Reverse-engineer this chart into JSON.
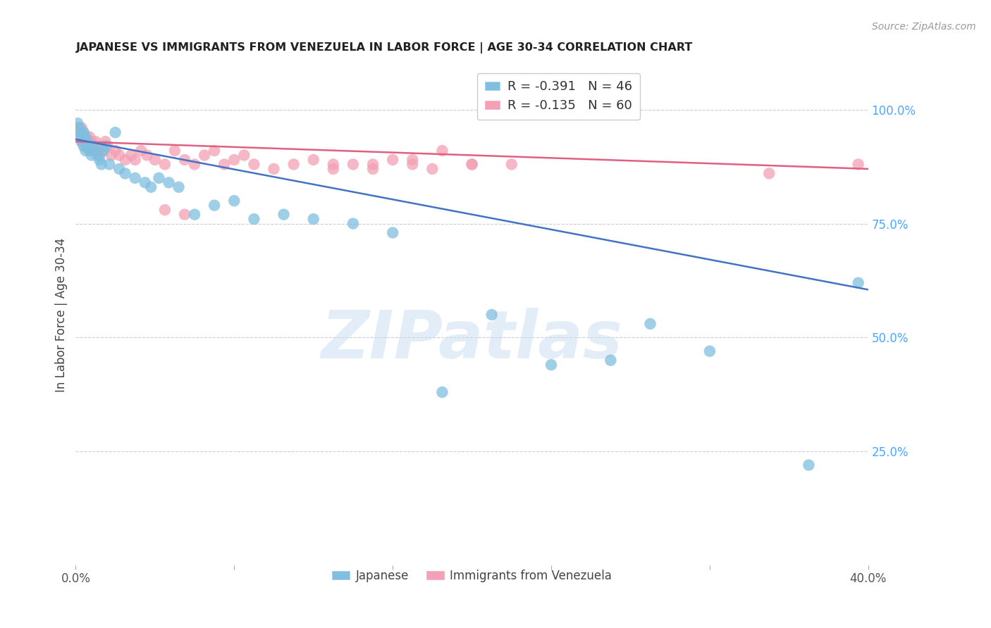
{
  "title": "JAPANESE VS IMMIGRANTS FROM VENEZUELA IN LABOR FORCE | AGE 30-34 CORRELATION CHART",
  "source": "Source: ZipAtlas.com",
  "ylabel": "In Labor Force | Age 30-34",
  "xlim": [
    0.0,
    0.4
  ],
  "ylim": [
    0.0,
    1.1
  ],
  "xticks": [
    0.0,
    0.08,
    0.16,
    0.24,
    0.32,
    0.4
  ],
  "xticklabels": [
    "0.0%",
    "",
    "",
    "",
    "",
    "40.0%"
  ],
  "yticks_right": [
    0.25,
    0.5,
    0.75,
    1.0
  ],
  "ytick_labels_right": [
    "25.0%",
    "50.0%",
    "75.0%",
    "100.0%"
  ],
  "watermark": "ZIPatlas",
  "blue_color": "#7fbfdf",
  "pink_color": "#f4a0b5",
  "blue_line_color": "#4472c4",
  "pink_line_color": "#e06080",
  "R_blue": -0.391,
  "N_blue": 46,
  "R_pink": -0.135,
  "N_pink": 60,
  "japanese_x": [
    0.001,
    0.002,
    0.002,
    0.003,
    0.003,
    0.004,
    0.004,
    0.005,
    0.005,
    0.006,
    0.006,
    0.007,
    0.008,
    0.009,
    0.01,
    0.011,
    0.012,
    0.013,
    0.014,
    0.015,
    0.017,
    0.02,
    0.022,
    0.025,
    0.03,
    0.035,
    0.038,
    0.042,
    0.047,
    0.052,
    0.06,
    0.07,
    0.08,
    0.09,
    0.105,
    0.12,
    0.14,
    0.16,
    0.185,
    0.21,
    0.24,
    0.27,
    0.29,
    0.32,
    0.37,
    0.395
  ],
  "japanese_y": [
    0.97,
    0.96,
    0.95,
    0.94,
    0.93,
    0.95,
    0.92,
    0.94,
    0.91,
    0.93,
    0.92,
    0.91,
    0.9,
    0.92,
    0.91,
    0.9,
    0.89,
    0.88,
    0.91,
    0.92,
    0.88,
    0.95,
    0.87,
    0.86,
    0.85,
    0.84,
    0.83,
    0.85,
    0.84,
    0.83,
    0.77,
    0.79,
    0.8,
    0.76,
    0.77,
    0.76,
    0.75,
    0.73,
    0.38,
    0.55,
    0.44,
    0.45,
    0.53,
    0.47,
    0.22,
    0.62
  ],
  "venezuela_x": [
    0.001,
    0.002,
    0.002,
    0.003,
    0.003,
    0.004,
    0.005,
    0.005,
    0.006,
    0.007,
    0.007,
    0.008,
    0.008,
    0.009,
    0.01,
    0.011,
    0.012,
    0.013,
    0.014,
    0.015,
    0.016,
    0.018,
    0.02,
    0.022,
    0.025,
    0.028,
    0.03,
    0.033,
    0.036,
    0.04,
    0.045,
    0.05,
    0.055,
    0.06,
    0.065,
    0.07,
    0.075,
    0.08,
    0.085,
    0.09,
    0.1,
    0.11,
    0.12,
    0.13,
    0.14,
    0.15,
    0.16,
    0.17,
    0.18,
    0.2,
    0.045,
    0.055,
    0.13,
    0.15,
    0.17,
    0.185,
    0.2,
    0.22,
    0.35,
    0.395
  ],
  "venezuela_y": [
    0.96,
    0.95,
    0.94,
    0.96,
    0.93,
    0.95,
    0.94,
    0.92,
    0.93,
    0.94,
    0.92,
    0.93,
    0.91,
    0.92,
    0.93,
    0.91,
    0.9,
    0.92,
    0.91,
    0.93,
    0.92,
    0.9,
    0.91,
    0.9,
    0.89,
    0.9,
    0.89,
    0.91,
    0.9,
    0.89,
    0.88,
    0.91,
    0.89,
    0.88,
    0.9,
    0.91,
    0.88,
    0.89,
    0.9,
    0.88,
    0.87,
    0.88,
    0.89,
    0.87,
    0.88,
    0.87,
    0.89,
    0.88,
    0.87,
    0.88,
    0.78,
    0.77,
    0.88,
    0.88,
    0.89,
    0.91,
    0.88,
    0.88,
    0.86,
    0.88
  ]
}
